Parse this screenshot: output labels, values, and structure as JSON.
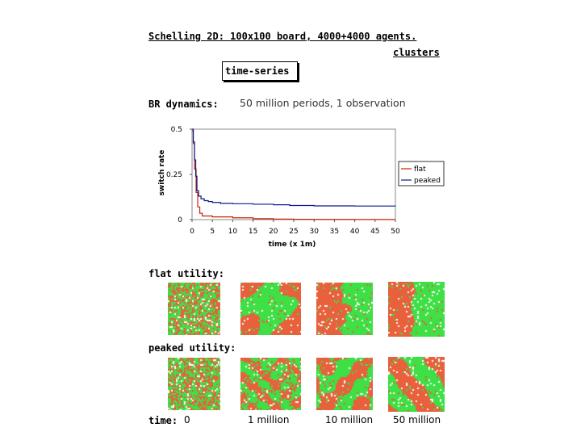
{
  "title": "Schelling 2D: 100x100 board, 4000+4000 agents.",
  "links": {
    "clusters": "clusters",
    "time_series": "time-series"
  },
  "br": {
    "label": "BR dynamics:",
    "description": "50 million periods, 1 observation"
  },
  "chart_data": {
    "type": "line",
    "xlabel": "time (x 1m)",
    "ylabel": "switch rate",
    "xlim": [
      0,
      50
    ],
    "ylim": [
      0,
      0.5
    ],
    "x_ticks": [
      "0",
      "5",
      "10",
      "15",
      "20",
      "25",
      "30",
      "35",
      "40",
      "45",
      "50"
    ],
    "y_ticks": [
      "0",
      "0.25",
      "0.5"
    ],
    "legend_position": "right",
    "series": [
      {
        "name": "flat",
        "color": "#cc2200",
        "x": [
          0,
          0.3,
          0.6,
          1.0,
          1.4,
          1.9,
          2.5,
          5,
          10,
          15,
          20,
          25,
          30,
          40,
          50
        ],
        "y": [
          0.49,
          0.42,
          0.28,
          0.15,
          0.07,
          0.035,
          0.02,
          0.015,
          0.01,
          0.005,
          0.003,
          0.002,
          0.001,
          0.0005,
          0.0005
        ]
      },
      {
        "name": "peaked",
        "color": "#0a1a8c",
        "x": [
          0,
          0.3,
          0.6,
          0.9,
          1.2,
          1.6,
          2.2,
          3,
          4,
          5,
          7,
          10,
          15,
          20,
          24,
          30,
          40,
          50
        ],
        "y": [
          0.5,
          0.43,
          0.33,
          0.24,
          0.16,
          0.13,
          0.115,
          0.105,
          0.1,
          0.095,
          0.09,
          0.088,
          0.085,
          0.082,
          0.078,
          0.076,
          0.075,
          0.074
        ]
      }
    ]
  },
  "rows": {
    "flat_label": "flat utility:",
    "peaked_label": "peaked utility:"
  },
  "time": {
    "label": "time:",
    "values": [
      "0",
      "1 million",
      "10 million",
      "50 million"
    ]
  },
  "colors": {
    "agent_a": "#e8603c",
    "agent_b": "#3ee045"
  }
}
